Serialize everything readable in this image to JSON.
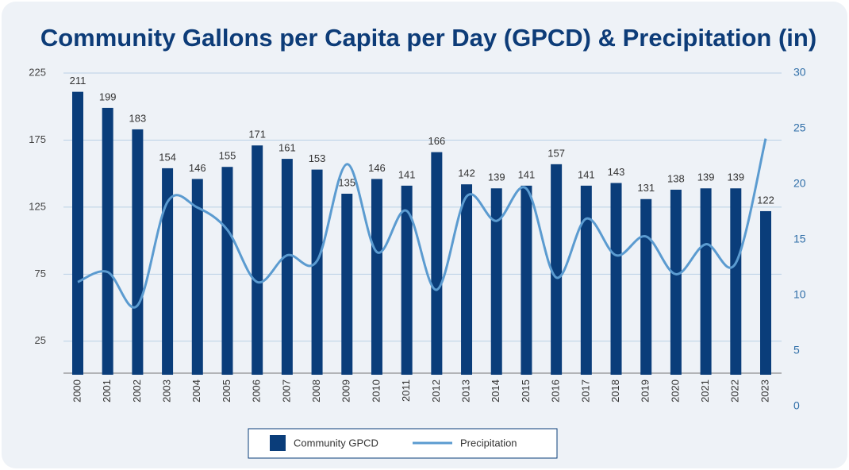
{
  "chart_data": {
    "type": "bar",
    "title": "Community Gallons per Capita per Day (GPCD) & Precipitation (in)",
    "categories": [
      "2000",
      "2001",
      "2002",
      "2003",
      "2004",
      "2005",
      "2006",
      "2007",
      "2008",
      "2009",
      "2010",
      "2011",
      "2012",
      "2013",
      "2014",
      "2015",
      "2016",
      "2017",
      "2018",
      "2019",
      "2020",
      "2021",
      "2022",
      "2023"
    ],
    "series": [
      {
        "name": "Community GPCD",
        "type": "bar",
        "color": "#0a3d7a",
        "values": [
          211,
          199,
          183,
          154,
          146,
          155,
          171,
          161,
          153,
          135,
          146,
          141,
          166,
          142,
          139,
          141,
          157,
          141,
          143,
          131,
          138,
          139,
          139,
          122
        ]
      },
      {
        "name": "Precipitation",
        "type": "line",
        "axis": "y2",
        "color": "#5b9bd0",
        "values": [
          11.2,
          12.1,
          9.1,
          18.4,
          17.9,
          15.9,
          11.2,
          13.6,
          13.1,
          21.8,
          13.9,
          17.6,
          10.5,
          18.9,
          16.7,
          19.6,
          11.6,
          16.9,
          13.6,
          15.3,
          11.9,
          14.6,
          12.9,
          24.1
        ]
      }
    ],
    "ylim": [
      0,
      225
    ],
    "yticks": [
      25,
      75,
      125,
      175,
      225
    ],
    "y2lim": [
      0,
      30
    ],
    "y2ticks": [
      0,
      5,
      10,
      15,
      20,
      25,
      30
    ],
    "grid": true,
    "legend": "bottom"
  }
}
